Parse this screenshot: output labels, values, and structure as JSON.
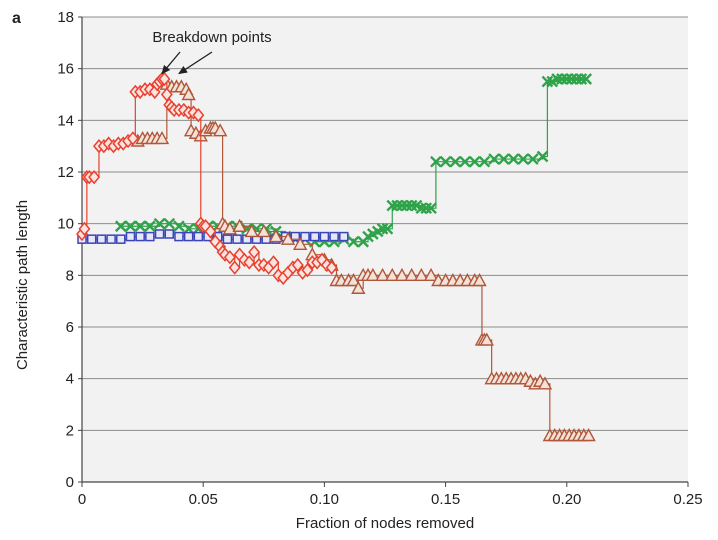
{
  "panel_label": "a",
  "colors": {
    "red": "#e8412f",
    "brown": "#b0573a",
    "green": "#2fa34a",
    "blue": "#3b45b8",
    "grid": "#8c8c8c",
    "plot_bg": "#f2f2f2"
  },
  "chart_data": {
    "type": "scatter",
    "title": "",
    "xlabel": "Fraction of nodes removed",
    "ylabel": "Characteristic path length",
    "xlim": [
      0,
      0.25
    ],
    "ylim": [
      0,
      18
    ],
    "xticks": [
      "0",
      "0.05",
      "0.10",
      "0.15",
      "0.20",
      "0.25"
    ],
    "yticks": [
      "0",
      "2",
      "4",
      "6",
      "8",
      "10",
      "12",
      "14",
      "16",
      "18"
    ],
    "grid": "horizontal",
    "legend": "none",
    "annotation": {
      "text": "Breakdown points",
      "targets": [
        [
          0.033,
          15.5
        ],
        [
          0.04,
          15.5
        ]
      ]
    },
    "series": [
      {
        "marker": "diamond",
        "color": "#e8412f",
        "x": [
          0.0,
          0.001,
          0.002,
          0.003,
          0.005,
          0.007,
          0.009,
          0.011,
          0.013,
          0.015,
          0.017,
          0.019,
          0.021,
          0.022,
          0.024,
          0.026,
          0.028,
          0.03,
          0.031,
          0.032,
          0.033,
          0.034,
          0.035,
          0.036,
          0.037,
          0.038,
          0.04,
          0.042,
          0.044,
          0.046,
          0.048,
          0.049,
          0.05,
          0.051,
          0.053,
          0.055,
          0.057,
          0.058,
          0.059,
          0.061,
          0.063,
          0.065,
          0.067,
          0.069,
          0.071,
          0.073,
          0.075,
          0.077,
          0.079,
          0.081,
          0.083,
          0.085,
          0.087,
          0.089,
          0.091,
          0.093,
          0.095,
          0.097,
          0.099,
          0.101,
          0.103
        ],
        "y": [
          9.6,
          9.8,
          11.8,
          11.8,
          11.8,
          13.0,
          13.0,
          13.1,
          13.0,
          13.1,
          13.1,
          13.2,
          13.3,
          15.1,
          15.1,
          15.2,
          15.2,
          15.1,
          15.4,
          15.5,
          15.6,
          15.6,
          15.0,
          14.6,
          14.5,
          14.4,
          14.4,
          14.4,
          14.3,
          14.3,
          14.2,
          10.0,
          9.9,
          9.9,
          9.7,
          9.3,
          9.1,
          8.9,
          8.8,
          8.7,
          8.3,
          8.8,
          8.6,
          8.5,
          8.9,
          8.4,
          8.4,
          8.3,
          8.5,
          8.0,
          7.9,
          8.1,
          8.3,
          8.4,
          8.1,
          8.2,
          8.5,
          8.5,
          8.6,
          8.4,
          8.3
        ]
      },
      {
        "marker": "triangle",
        "color": "#b0573a",
        "x": [
          0.023,
          0.025,
          0.027,
          0.029,
          0.031,
          0.033,
          0.035,
          0.037,
          0.039,
          0.041,
          0.043,
          0.044,
          0.045,
          0.047,
          0.049,
          0.051,
          0.053,
          0.054,
          0.055,
          0.057,
          0.058,
          0.059,
          0.061,
          0.065,
          0.07,
          0.075,
          0.08,
          0.085,
          0.09,
          0.095,
          0.1,
          0.103,
          0.105,
          0.107,
          0.11,
          0.112,
          0.114,
          0.116,
          0.118,
          0.12,
          0.124,
          0.128,
          0.132,
          0.136,
          0.14,
          0.144,
          0.147,
          0.15,
          0.153,
          0.156,
          0.159,
          0.162,
          0.164,
          0.165,
          0.166,
          0.167,
          0.169,
          0.171,
          0.173,
          0.175,
          0.177,
          0.179,
          0.181,
          0.183,
          0.185,
          0.187,
          0.189,
          0.191,
          0.193,
          0.195,
          0.197,
          0.199,
          0.201,
          0.203,
          0.205,
          0.207,
          0.209
        ],
        "y": [
          13.2,
          13.3,
          13.3,
          13.3,
          13.3,
          13.3,
          15.4,
          15.3,
          15.3,
          15.3,
          15.2,
          15.0,
          13.6,
          13.5,
          13.4,
          13.6,
          13.7,
          13.7,
          13.7,
          13.6,
          10.0,
          9.9,
          9.8,
          9.9,
          9.7,
          9.7,
          9.5,
          9.4,
          9.2,
          8.8,
          8.6,
          8.4,
          7.8,
          7.8,
          7.8,
          7.8,
          7.5,
          8.0,
          8.0,
          8.0,
          8.0,
          8.0,
          8.0,
          8.0,
          8.0,
          8.0,
          7.8,
          7.8,
          7.8,
          7.8,
          7.8,
          7.8,
          7.8,
          5.5,
          5.5,
          5.5,
          4.0,
          4.0,
          4.0,
          4.0,
          4.0,
          4.0,
          4.0,
          4.0,
          3.9,
          3.8,
          3.9,
          3.8,
          1.8,
          1.8,
          1.8,
          1.8,
          1.8,
          1.8,
          1.8,
          1.8,
          1.8
        ]
      },
      {
        "marker": "x",
        "color": "#2fa34a",
        "x": [
          0.016,
          0.02,
          0.024,
          0.028,
          0.032,
          0.036,
          0.04,
          0.044,
          0.048,
          0.052,
          0.056,
          0.06,
          0.064,
          0.068,
          0.072,
          0.076,
          0.08,
          0.084,
          0.088,
          0.092,
          0.096,
          0.1,
          0.104,
          0.108,
          0.112,
          0.116,
          0.118,
          0.12,
          0.122,
          0.124,
          0.126,
          0.128,
          0.13,
          0.132,
          0.134,
          0.136,
          0.138,
          0.14,
          0.142,
          0.144,
          0.146,
          0.15,
          0.154,
          0.158,
          0.162,
          0.166,
          0.17,
          0.174,
          0.178,
          0.182,
          0.186,
          0.19,
          0.192,
          0.194,
          0.196,
          0.198,
          0.2,
          0.202,
          0.204,
          0.206,
          0.208
        ],
        "y": [
          9.9,
          9.9,
          9.9,
          9.9,
          10.0,
          10.0,
          9.9,
          9.8,
          9.8,
          9.9,
          9.9,
          9.9,
          9.9,
          9.8,
          9.8,
          9.8,
          9.7,
          9.5,
          9.4,
          9.4,
          9.3,
          9.3,
          9.3,
          9.4,
          9.3,
          9.3,
          9.5,
          9.6,
          9.7,
          9.8,
          9.8,
          10.7,
          10.7,
          10.7,
          10.7,
          10.7,
          10.7,
          10.6,
          10.6,
          10.6,
          12.4,
          12.4,
          12.4,
          12.4,
          12.4,
          12.4,
          12.5,
          12.5,
          12.5,
          12.5,
          12.5,
          12.6,
          15.5,
          15.5,
          15.6,
          15.6,
          15.6,
          15.6,
          15.6,
          15.6,
          15.6
        ]
      },
      {
        "marker": "square",
        "color": "#3b45b8",
        "x": [
          0.0,
          0.004,
          0.008,
          0.012,
          0.016,
          0.02,
          0.024,
          0.028,
          0.032,
          0.036,
          0.04,
          0.044,
          0.048,
          0.052,
          0.056,
          0.06,
          0.064,
          0.068,
          0.072,
          0.076,
          0.08,
          0.084,
          0.088,
          0.092,
          0.096,
          0.1,
          0.104,
          0.108
        ],
        "y": [
          9.4,
          9.4,
          9.4,
          9.4,
          9.4,
          9.5,
          9.5,
          9.5,
          9.6,
          9.6,
          9.5,
          9.5,
          9.5,
          9.5,
          9.5,
          9.4,
          9.4,
          9.4,
          9.4,
          9.4,
          9.4,
          9.5,
          9.5,
          9.5,
          9.5,
          9.5,
          9.5,
          9.5
        ]
      }
    ]
  }
}
